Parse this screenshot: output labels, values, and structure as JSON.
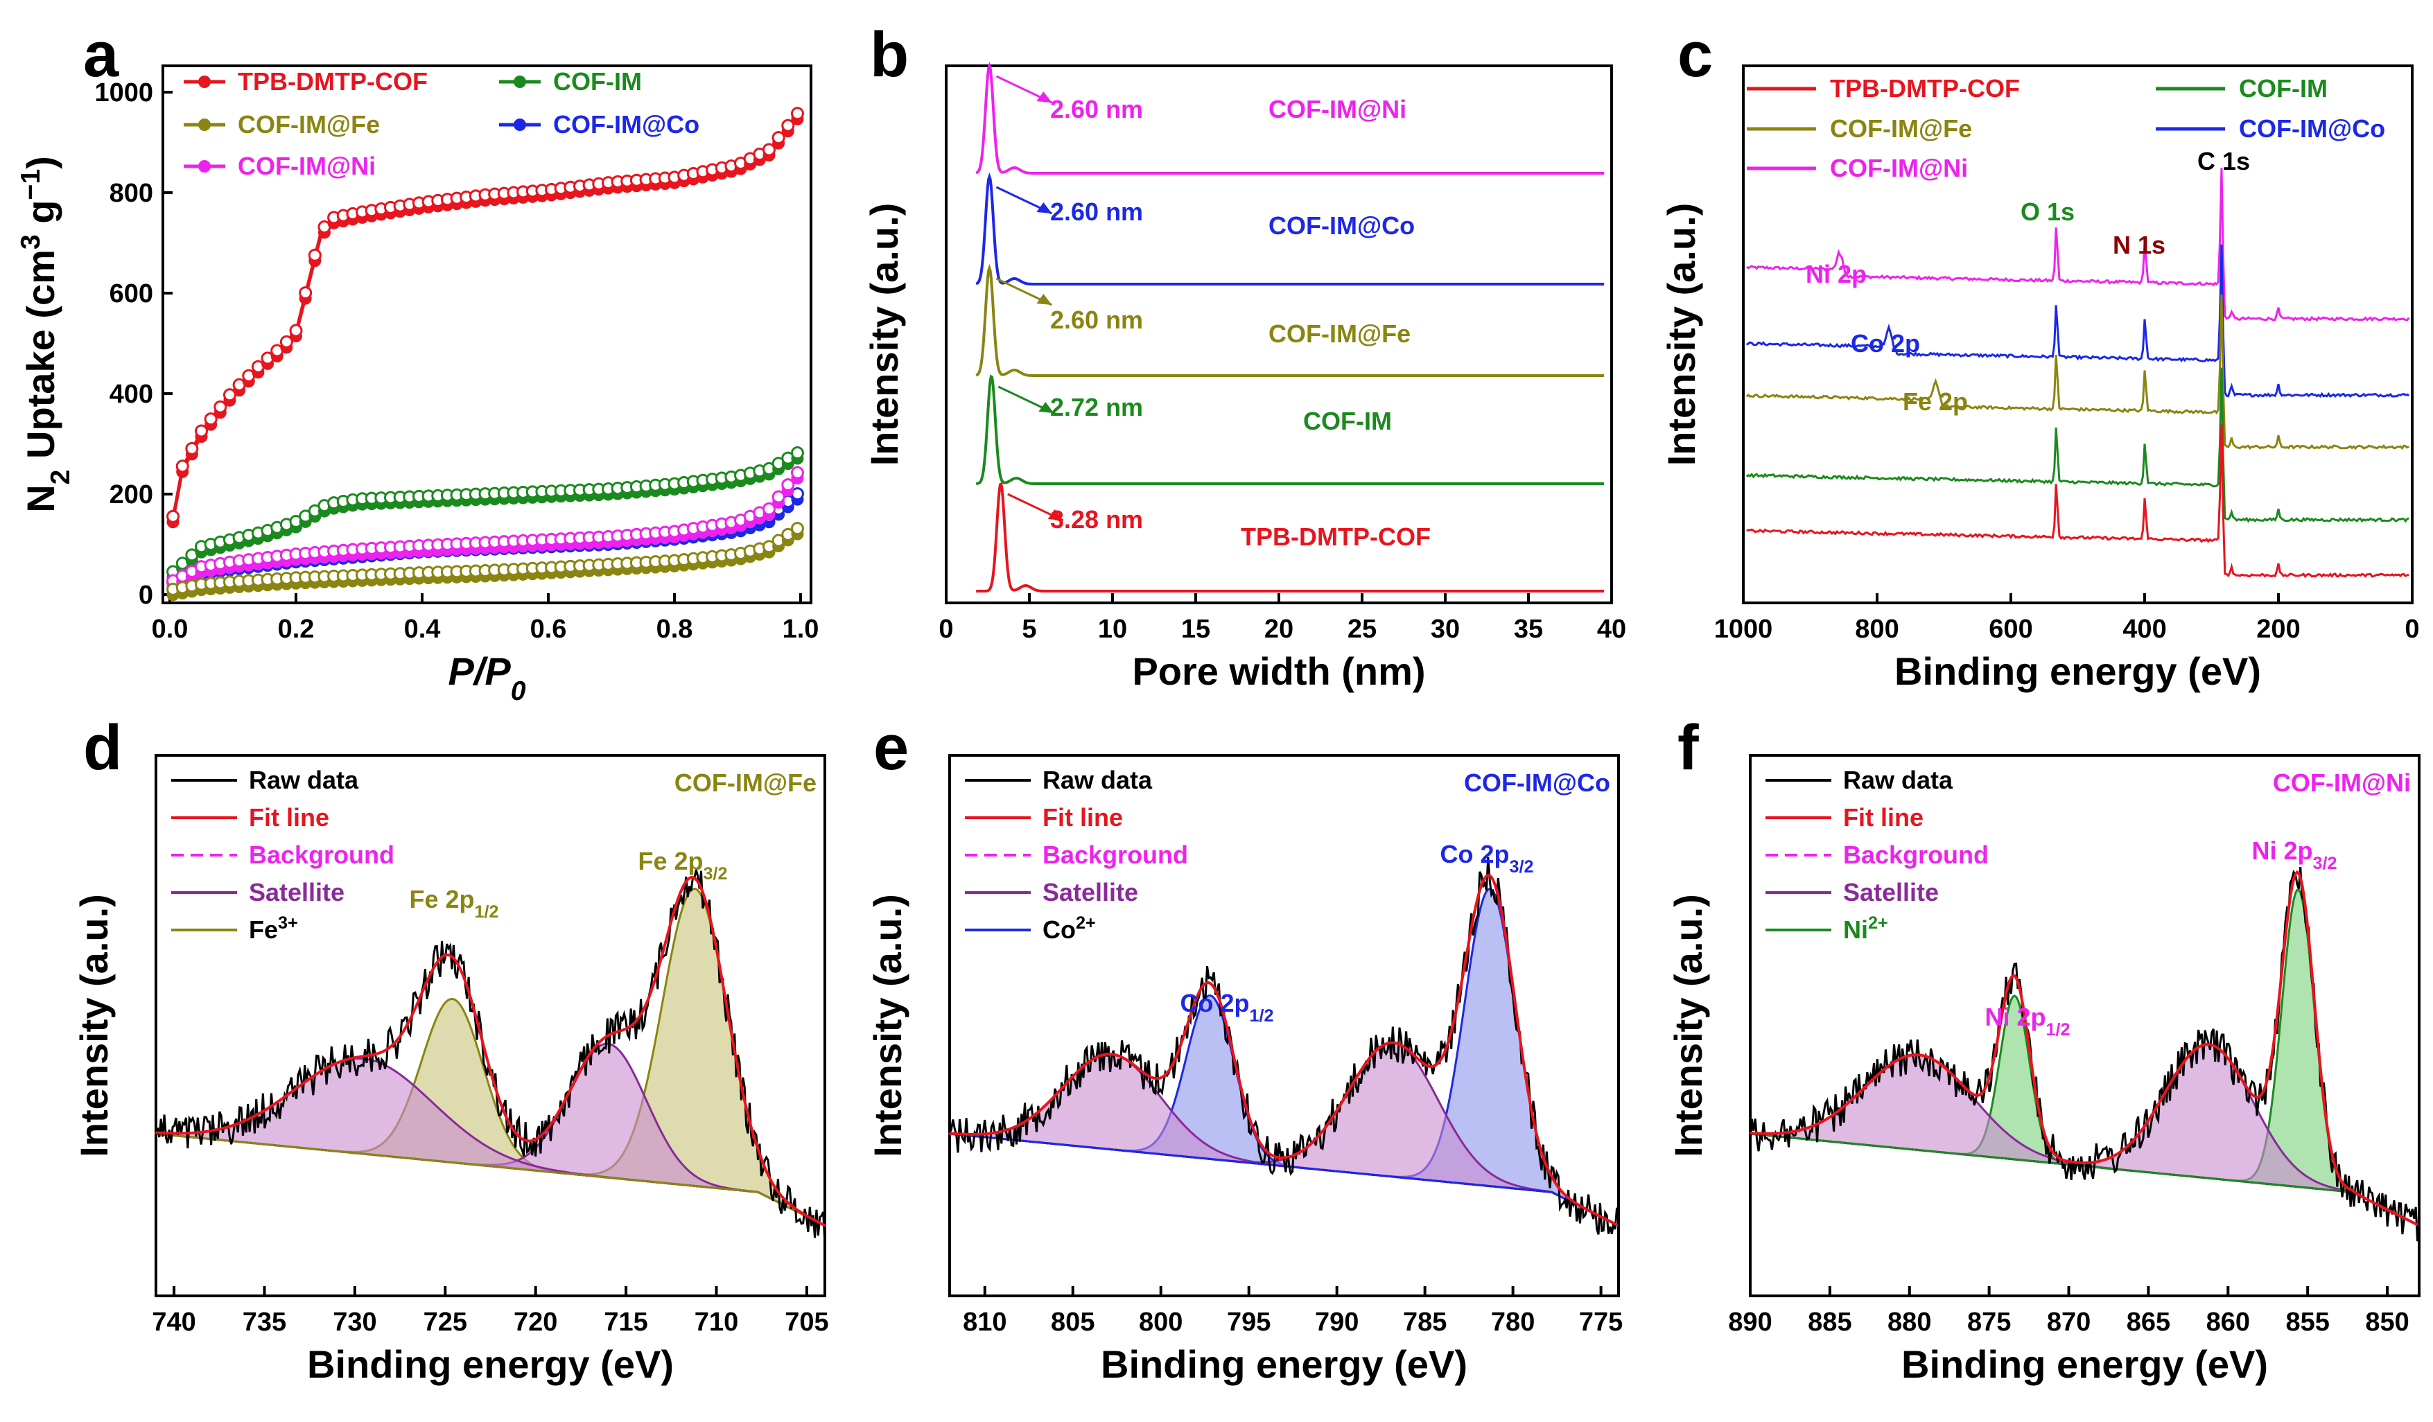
{
  "figure": "TPB-DMTP-COF / COF-IM metal-loaded characterization",
  "colors": {
    "tpb": "#e8141e",
    "im": "#1b8a1e",
    "fe": "#8a8510",
    "co": "#1c28e8",
    "ni": "#ee22ee",
    "sat": "#8a2a9a",
    "satfill": "#c98cd0",
    "fefill": "#c8c47a",
    "cofill": "#8c96ec",
    "nifill": "#7ad07a"
  },
  "chart_data": [
    {
      "id": "a",
      "panel_label": "a",
      "type": "line",
      "xlabel": "P/P0",
      "xlabel_main": "P/P",
      "xlabel_sub": "0",
      "ylabel": "N2 Uptake (cm3 g−1)",
      "ylabel_parts": {
        "n": "N",
        "sub": "2",
        "mid": " Uptake (cm",
        "sup": "3",
        "mid2": " g",
        "sup2": "−1",
        "end": ")"
      },
      "xlim": [
        0,
        1
      ],
      "ylim": [
        0,
        1000
      ],
      "xticks": [
        "0.0",
        "0.2",
        "0.4",
        "0.6",
        "0.8",
        "1.0"
      ],
      "yticks": [
        "0",
        "200",
        "400",
        "600",
        "800",
        "1000"
      ],
      "legend": [
        "TPB-DMTP-COF",
        "COF-IM",
        "COF-IM@Fe",
        "COF-IM@Co",
        "COF-IM@Ni"
      ],
      "series": [
        {
          "name": "TPB-DMTP-COF",
          "color": "#e8141e",
          "x": [
            0.005,
            0.02,
            0.05,
            0.1,
            0.15,
            0.18,
            0.2,
            0.22,
            0.24,
            0.26,
            0.3,
            0.4,
            0.5,
            0.6,
            0.7,
            0.8,
            0.9,
            0.95,
            1.0
          ],
          "y": [
            150,
            250,
            320,
            400,
            460,
            490,
            520,
            620,
            720,
            745,
            755,
            775,
            790,
            800,
            815,
            825,
            850,
            880,
            960
          ]
        },
        {
          "name": "COF-IM",
          "color": "#1b8a1e",
          "x": [
            0.005,
            0.05,
            0.1,
            0.15,
            0.2,
            0.25,
            0.3,
            0.4,
            0.5,
            0.6,
            0.7,
            0.8,
            0.9,
            0.95,
            1.0
          ],
          "y": [
            40,
            90,
            105,
            120,
            140,
            175,
            185,
            190,
            195,
            200,
            205,
            215,
            230,
            245,
            280
          ]
        },
        {
          "name": "COF-IM@Co",
          "color": "#1c28e8",
          "x": [
            0.005,
            0.05,
            0.1,
            0.2,
            0.3,
            0.4,
            0.5,
            0.6,
            0.7,
            0.8,
            0.9,
            0.95,
            1.0
          ],
          "y": [
            20,
            45,
            55,
            70,
            80,
            90,
            95,
            100,
            105,
            115,
            130,
            150,
            200
          ]
        },
        {
          "name": "COF-IM@Ni",
          "color": "#ee22ee",
          "x": [
            0.005,
            0.05,
            0.1,
            0.2,
            0.3,
            0.4,
            0.5,
            0.6,
            0.7,
            0.8,
            0.9,
            0.95,
            1.0
          ],
          "y": [
            22,
            50,
            60,
            75,
            85,
            92,
            98,
            104,
            110,
            120,
            140,
            165,
            245
          ]
        },
        {
          "name": "COF-IM@Fe",
          "color": "#8a8510",
          "x": [
            0.005,
            0.05,
            0.1,
            0.2,
            0.3,
            0.4,
            0.5,
            0.6,
            0.7,
            0.8,
            0.9,
            0.95,
            1.0
          ],
          "y": [
            5,
            15,
            20,
            28,
            33,
            38,
            42,
            48,
            55,
            62,
            75,
            90,
            130
          ]
        }
      ]
    },
    {
      "id": "b",
      "panel_label": "b",
      "type": "line",
      "xlabel": "Pore width (nm)",
      "ylabel": "Intensity (a.u.)",
      "xlim": [
        0,
        40
      ],
      "xticks": [
        "0",
        "5",
        "10",
        "15",
        "20",
        "25",
        "30",
        "35",
        "40"
      ],
      "series": [
        {
          "name": "COF-IM@Ni",
          "color": "#ee22ee",
          "peak_nm": 2.6,
          "label": "2.60 nm",
          "offset": 4
        },
        {
          "name": "COF-IM@Co",
          "color": "#1c28e8",
          "peak_nm": 2.6,
          "label": "2.60 nm",
          "offset": 3
        },
        {
          "name": "COF-IM@Fe",
          "color": "#8a8510",
          "peak_nm": 2.6,
          "label": "2.60 nm",
          "offset": 2
        },
        {
          "name": "COF-IM",
          "color": "#1b8a1e",
          "peak_nm": 2.72,
          "label": "2.72 nm",
          "offset": 1
        },
        {
          "name": "TPB-DMTP-COF",
          "color": "#e8141e",
          "peak_nm": 3.28,
          "label": "3.28 nm",
          "offset": 0
        }
      ]
    },
    {
      "id": "c",
      "panel_label": "c",
      "type": "line",
      "xlabel": "Binding energy (eV)",
      "ylabel": "Intensity (a.u.)",
      "xlim": [
        1000,
        0
      ],
      "xticks": [
        "1000",
        "800",
        "600",
        "400",
        "200",
        "0"
      ],
      "legend": [
        "TPB-DMTP-COF",
        "COF-IM",
        "COF-IM@Fe",
        "COF-IM@Co",
        "COF-IM@Ni"
      ],
      "peaks": {
        "C1s": 284.8,
        "N1s": 399.5,
        "O1s": 532,
        "Fe2p": 711,
        "Co2p": 781,
        "Ni2p": 855
      },
      "annotations": [
        "Ni 2p",
        "Co 2p",
        "Fe 2p",
        "O 1s",
        "N 1s",
        "C 1s"
      ]
    },
    {
      "id": "d",
      "panel_label": "d",
      "type": "line",
      "sample": "COF-IM@Fe",
      "xlabel": "Binding energy (eV)",
      "ylabel": "Intensity (a.u.)",
      "xlim": [
        741,
        704
      ],
      "xticks": [
        "740",
        "735",
        "730",
        "725",
        "720",
        "715",
        "710",
        "705"
      ],
      "legend": [
        "Raw data",
        "Fit line",
        "Background",
        "Satellite",
        "Fe3+"
      ],
      "ion": {
        "base": "Fe",
        "sup": "3+"
      },
      "peaks": [
        {
          "name": "Fe 2p3/2",
          "center": 711.2,
          "fwhm": 4.2,
          "type": "main"
        },
        {
          "name": "Fe 2p1/2",
          "center": 724.6,
          "fwhm": 4.0,
          "type": "main"
        },
        {
          "name": "Satellite",
          "center": 716.0,
          "fwhm": 5.0,
          "type": "sat"
        },
        {
          "name": "Satellite",
          "center": 729.5,
          "fwhm": 9.0,
          "type": "sat"
        }
      ],
      "labels": [
        {
          "base": "Fe 2p",
          "sub": "1/2"
        },
        {
          "base": "Fe 2p",
          "sub": "3/2"
        }
      ]
    },
    {
      "id": "e",
      "panel_label": "e",
      "type": "line",
      "sample": "COF-IM@Co",
      "xlabel": "Binding energy (eV)",
      "ylabel": "Intensity (a.u.)",
      "xlim": [
        812,
        774
      ],
      "xticks": [
        "810",
        "805",
        "800",
        "795",
        "790",
        "785",
        "780",
        "775"
      ],
      "legend": [
        "Raw data",
        "Fit line",
        "Background",
        "Satellite",
        "Co2+"
      ],
      "ion": {
        "base": "Co",
        "sup": "2+"
      },
      "peaks": [
        {
          "name": "Co 2p3/2",
          "center": 781.3,
          "fwhm": 3.4,
          "type": "main"
        },
        {
          "name": "Co 2p1/2",
          "center": 797.2,
          "fwhm": 3.2,
          "type": "main"
        },
        {
          "name": "Satellite",
          "center": 786.8,
          "fwhm": 6.0,
          "type": "sat"
        },
        {
          "name": "Satellite",
          "center": 802.8,
          "fwhm": 6.5,
          "type": "sat"
        }
      ],
      "labels": [
        {
          "base": "Co 2p",
          "sub": "1/2"
        },
        {
          "base": "Co 2p",
          "sub": "3/2"
        }
      ]
    },
    {
      "id": "f",
      "panel_label": "f",
      "type": "line",
      "sample": "COF-IM@Ni",
      "xlabel": "Binding energy (eV)",
      "ylabel": "Intensity (a.u.)",
      "xlim": [
        890,
        848
      ],
      "xticks": [
        "890",
        "885",
        "880",
        "875",
        "870",
        "865",
        "860",
        "855",
        "850"
      ],
      "legend": [
        "Raw data",
        "Fit line",
        "Background",
        "Satellite",
        "Ni2+"
      ],
      "ion": {
        "base": "Ni",
        "sup": "2+"
      },
      "peaks": [
        {
          "name": "Ni 2p3/2",
          "center": 855.6,
          "fwhm": 2.4,
          "type": "main"
        },
        {
          "name": "Ni 2p1/2",
          "center": 873.4,
          "fwhm": 2.2,
          "type": "main"
        },
        {
          "name": "Satellite",
          "center": 861.2,
          "fwhm": 6.5,
          "type": "sat"
        },
        {
          "name": "Satellite",
          "center": 879.4,
          "fwhm": 8.0,
          "type": "sat"
        }
      ],
      "labels": [
        {
          "base": "Ni 2p",
          "sub": "1/2"
        },
        {
          "base": "Ni 2p",
          "sub": "3/2"
        }
      ]
    }
  ]
}
